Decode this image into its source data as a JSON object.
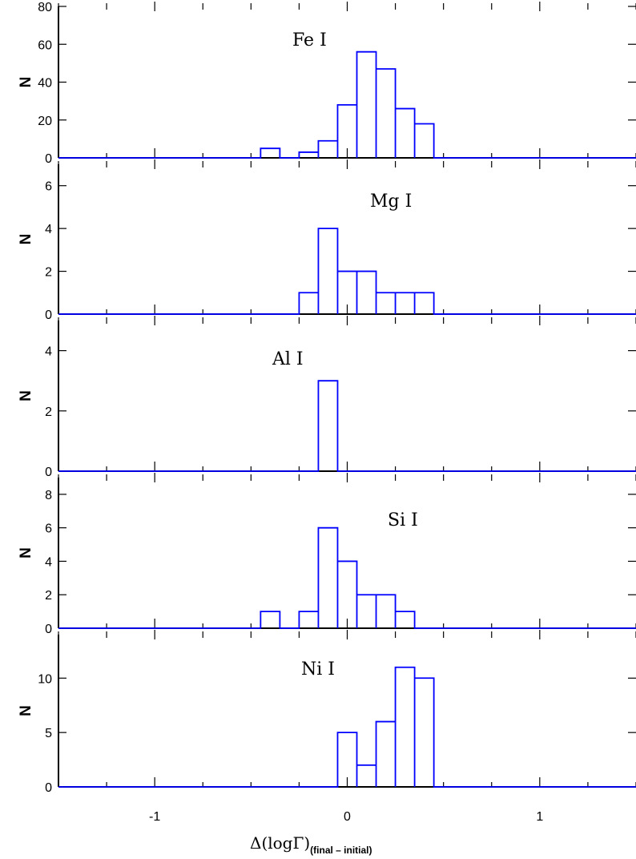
{
  "chart_data": [
    {
      "type": "bar",
      "panel_label": "Fe I",
      "ylabel": "N",
      "ylim": [
        0,
        80
      ],
      "yticks": [
        0,
        20,
        40,
        60,
        80
      ],
      "xlim": [
        -1.5,
        1.5
      ],
      "bins": [
        {
          "x0": -0.45,
          "x1": -0.35,
          "n": 5
        },
        {
          "x0": -0.25,
          "x1": -0.15,
          "n": 3
        },
        {
          "x0": -0.15,
          "x1": -0.05,
          "n": 9
        },
        {
          "x0": -0.05,
          "x1": 0.05,
          "n": 28
        },
        {
          "x0": 0.05,
          "x1": 0.15,
          "n": 56
        },
        {
          "x0": 0.15,
          "x1": 0.25,
          "n": 47
        },
        {
          "x0": 0.25,
          "x1": 0.35,
          "n": 26
        },
        {
          "x0": 0.35,
          "x1": 0.45,
          "n": 18
        }
      ]
    },
    {
      "type": "bar",
      "panel_label": "Mg I",
      "ylabel": "N",
      "ylim": [
        0,
        7
      ],
      "yticks": [
        0,
        2,
        4,
        6
      ],
      "xlim": [
        -1.5,
        1.5
      ],
      "bins": [
        {
          "x0": -0.25,
          "x1": -0.15,
          "n": 1
        },
        {
          "x0": -0.15,
          "x1": -0.05,
          "n": 4
        },
        {
          "x0": -0.05,
          "x1": 0.05,
          "n": 2
        },
        {
          "x0": 0.05,
          "x1": 0.15,
          "n": 2
        },
        {
          "x0": 0.15,
          "x1": 0.25,
          "n": 1
        },
        {
          "x0": 0.25,
          "x1": 0.35,
          "n": 1
        },
        {
          "x0": 0.35,
          "x1": 0.45,
          "n": 1
        }
      ]
    },
    {
      "type": "bar",
      "panel_label": "Al I",
      "ylabel": "N",
      "ylim": [
        0,
        5
      ],
      "yticks": [
        0,
        2,
        4
      ],
      "xlim": [
        -1.5,
        1.5
      ],
      "bins": [
        {
          "x0": -0.15,
          "x1": -0.05,
          "n": 3
        }
      ]
    },
    {
      "type": "bar",
      "panel_label": "Si I",
      "ylabel": "N",
      "ylim": [
        0,
        9
      ],
      "yticks": [
        0,
        2,
        4,
        6,
        8
      ],
      "xlim": [
        -1.5,
        1.5
      ],
      "bins": [
        {
          "x0": -0.45,
          "x1": -0.35,
          "n": 1
        },
        {
          "x0": -0.25,
          "x1": -0.15,
          "n": 1
        },
        {
          "x0": -0.15,
          "x1": -0.05,
          "n": 6
        },
        {
          "x0": -0.05,
          "x1": 0.05,
          "n": 4
        },
        {
          "x0": 0.05,
          "x1": 0.15,
          "n": 2
        },
        {
          "x0": 0.15,
          "x1": 0.25,
          "n": 2
        },
        {
          "x0": 0.25,
          "x1": 0.35,
          "n": 1
        }
      ]
    },
    {
      "type": "bar",
      "panel_label": "Ni I",
      "ylabel": "N",
      "ylim": [
        0,
        14
      ],
      "yticks": [
        0,
        5,
        10
      ],
      "xlim": [
        -1.5,
        1.5
      ],
      "xticks": [
        -1,
        0,
        1
      ],
      "bins": [
        {
          "x0": -0.05,
          "x1": 0.05,
          "n": 5
        },
        {
          "x0": 0.05,
          "x1": 0.15,
          "n": 2
        },
        {
          "x0": 0.15,
          "x1": 0.25,
          "n": 6
        },
        {
          "x0": 0.25,
          "x1": 0.35,
          "n": 11
        },
        {
          "x0": 0.35,
          "x1": 0.45,
          "n": 10
        }
      ]
    }
  ],
  "xaxis": {
    "label_main": "Δ(logΓ)",
    "label_sub": "(final  –  initial)",
    "ticks": [
      -1,
      0,
      1
    ]
  },
  "colors": {
    "histogram": "#0000ff",
    "axes": "#000000"
  }
}
